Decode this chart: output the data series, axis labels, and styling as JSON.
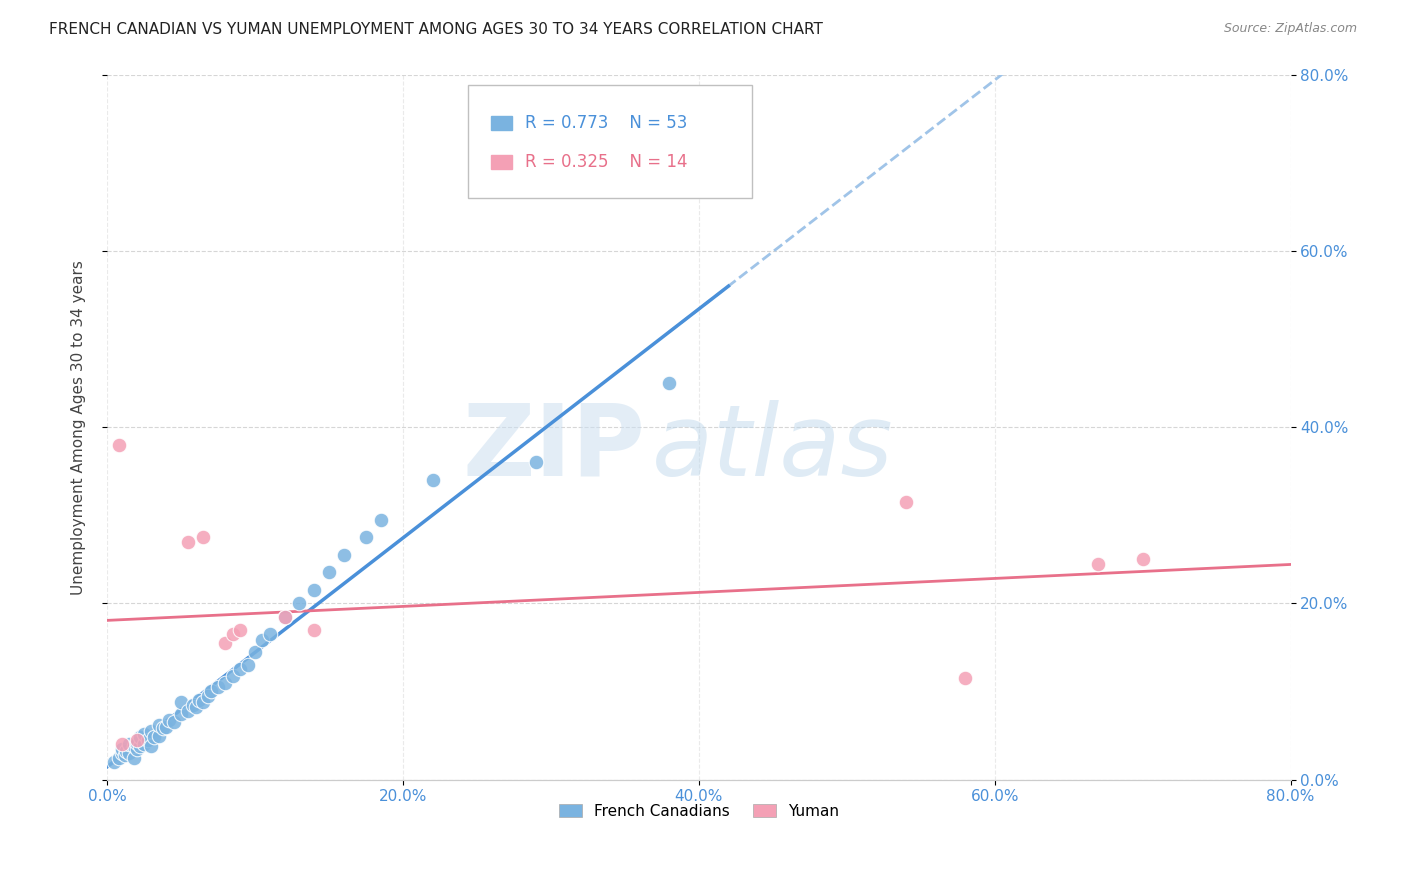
{
  "title": "FRENCH CANADIAN VS YUMAN UNEMPLOYMENT AMONG AGES 30 TO 34 YEARS CORRELATION CHART",
  "source": "Source: ZipAtlas.com",
  "ylabel": "Unemployment Among Ages 30 to 34 years",
  "xlim": [
    0.0,
    0.8
  ],
  "ylim": [
    0.0,
    0.8
  ],
  "xticks": [
    0.0,
    0.2,
    0.4,
    0.6,
    0.8
  ],
  "yticks": [
    0.0,
    0.2,
    0.4,
    0.6,
    0.8
  ],
  "xtick_labels": [
    "0.0%",
    "20.0%",
    "40.0%",
    "60.0%",
    "80.0%"
  ],
  "ytick_labels": [
    "0.0%",
    "20.0%",
    "40.0%",
    "60.0%",
    "80.0%"
  ],
  "blue_color": "#7ab3e0",
  "pink_color": "#f4a0b5",
  "blue_line_color": "#4a90d9",
  "pink_line_color": "#e8708a",
  "dashed_line_color": "#a0c4e8",
  "blue_R": 0.773,
  "blue_N": 53,
  "pink_R": 0.325,
  "pink_N": 14,
  "legend_label_blue": "French Canadians",
  "legend_label_pink": "Yuman",
  "watermark_zip": "ZIP",
  "watermark_atlas": "atlas",
  "background_color": "#ffffff",
  "french_canadians_x": [
    0.005,
    0.008,
    0.01,
    0.01,
    0.012,
    0.013,
    0.015,
    0.015,
    0.018,
    0.018,
    0.02,
    0.02,
    0.022,
    0.022,
    0.025,
    0.025,
    0.028,
    0.03,
    0.03,
    0.032,
    0.035,
    0.035,
    0.038,
    0.04,
    0.042,
    0.045,
    0.05,
    0.05,
    0.055,
    0.058,
    0.06,
    0.062,
    0.065,
    0.068,
    0.07,
    0.075,
    0.08,
    0.085,
    0.09,
    0.095,
    0.1,
    0.105,
    0.11,
    0.12,
    0.13,
    0.14,
    0.15,
    0.16,
    0.175,
    0.185,
    0.22,
    0.29,
    0.38
  ],
  "french_canadians_y": [
    0.02,
    0.025,
    0.03,
    0.035,
    0.028,
    0.032,
    0.03,
    0.04,
    0.025,
    0.038,
    0.035,
    0.042,
    0.038,
    0.048,
    0.04,
    0.052,
    0.045,
    0.038,
    0.055,
    0.048,
    0.05,
    0.062,
    0.058,
    0.06,
    0.068,
    0.065,
    0.075,
    0.088,
    0.078,
    0.085,
    0.082,
    0.09,
    0.088,
    0.095,
    0.1,
    0.105,
    0.11,
    0.118,
    0.125,
    0.13,
    0.145,
    0.158,
    0.165,
    0.185,
    0.2,
    0.215,
    0.235,
    0.255,
    0.275,
    0.295,
    0.34,
    0.36,
    0.45
  ],
  "yuman_x": [
    0.008,
    0.01,
    0.02,
    0.055,
    0.065,
    0.08,
    0.085,
    0.09,
    0.12,
    0.14,
    0.54,
    0.58,
    0.67,
    0.7
  ],
  "yuman_y": [
    0.38,
    0.04,
    0.045,
    0.27,
    0.275,
    0.155,
    0.165,
    0.17,
    0.185,
    0.17,
    0.315,
    0.115,
    0.245,
    0.25
  ]
}
